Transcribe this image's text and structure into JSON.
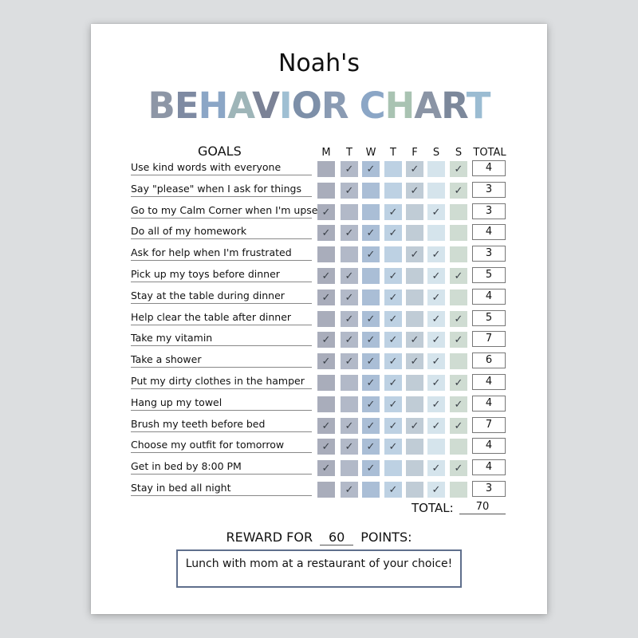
{
  "header": {
    "name": "Noah's",
    "title_letters": [
      {
        "ch": "B",
        "color": "#8d96a6"
      },
      {
        "ch": "E",
        "color": "#7e8aa2"
      },
      {
        "ch": "H",
        "color": "#8ba6c6"
      },
      {
        "ch": "A",
        "color": "#9eb5b8"
      },
      {
        "ch": "V",
        "color": "#7b8296"
      },
      {
        "ch": "I",
        "color": "#9fbfd3"
      },
      {
        "ch": "O",
        "color": "#7d8fa8"
      },
      {
        "ch": "R",
        "color": "#8a9bb3"
      },
      {
        "ch": " ",
        "color": "#ffffff"
      },
      {
        "ch": "C",
        "color": "#8ba6c6"
      },
      {
        "ch": "H",
        "color": "#a9c3b2"
      },
      {
        "ch": "A",
        "color": "#8a94a5"
      },
      {
        "ch": "R",
        "color": "#7c889b"
      },
      {
        "ch": "T",
        "color": "#9bbcd2"
      }
    ]
  },
  "table": {
    "goals_header": "GOALS",
    "total_header": "TOTAL",
    "days": [
      "M",
      "T",
      "W",
      "T",
      "F",
      "S",
      "S"
    ],
    "day_colors": [
      "#a9adbb",
      "#b2b9c8",
      "#aabed6",
      "#bdd1e3",
      "#c0ccd6",
      "#d5e4ec",
      "#cfdcd2"
    ],
    "check_mark": "✓",
    "rows": [
      {
        "goal": "Use kind words with everyone",
        "checks": [
          0,
          1,
          1,
          0,
          1,
          0,
          1
        ],
        "total": "4"
      },
      {
        "goal": "Say \"please\" when I ask for things",
        "checks": [
          0,
          1,
          0,
          0,
          1,
          0,
          1
        ],
        "total": "3"
      },
      {
        "goal": "Go to my Calm Corner when I'm upset",
        "checks": [
          1,
          0,
          0,
          1,
          0,
          1,
          0
        ],
        "total": "3"
      },
      {
        "goal": "Do all of my homework",
        "checks": [
          1,
          1,
          1,
          1,
          0,
          0,
          0
        ],
        "total": "4"
      },
      {
        "goal": "Ask for help when I'm frustrated",
        "checks": [
          0,
          0,
          1,
          0,
          1,
          1,
          0
        ],
        "total": "3"
      },
      {
        "goal": "Pick up my toys before dinner",
        "checks": [
          1,
          1,
          0,
          1,
          0,
          1,
          1
        ],
        "total": "5"
      },
      {
        "goal": "Stay at the table during dinner",
        "checks": [
          1,
          1,
          0,
          1,
          0,
          1,
          0
        ],
        "total": "4"
      },
      {
        "goal": "Help clear the table after dinner",
        "checks": [
          0,
          1,
          1,
          1,
          0,
          1,
          1
        ],
        "total": "5"
      },
      {
        "goal": "Take my vitamin",
        "checks": [
          1,
          1,
          1,
          1,
          1,
          1,
          1
        ],
        "total": "7"
      },
      {
        "goal": "Take a shower",
        "checks": [
          1,
          1,
          1,
          1,
          1,
          1,
          0
        ],
        "total": "6"
      },
      {
        "goal": "Put my dirty clothes in the hamper",
        "checks": [
          0,
          0,
          1,
          1,
          0,
          1,
          1
        ],
        "total": "4"
      },
      {
        "goal": "Hang up my towel",
        "checks": [
          0,
          0,
          1,
          1,
          0,
          1,
          1
        ],
        "total": "4"
      },
      {
        "goal": "Brush my teeth before bed",
        "checks": [
          1,
          1,
          1,
          1,
          1,
          1,
          1
        ],
        "total": "7"
      },
      {
        "goal": "Choose my outfit for tomorrow",
        "checks": [
          1,
          1,
          1,
          1,
          0,
          0,
          0
        ],
        "total": "4"
      },
      {
        "goal": "Get in bed by 8:00 PM",
        "checks": [
          1,
          0,
          1,
          0,
          0,
          1,
          1
        ],
        "total": "4"
      },
      {
        "goal": "Stay in bed all night",
        "checks": [
          0,
          1,
          0,
          1,
          0,
          1,
          0
        ],
        "total": "3"
      }
    ]
  },
  "summary": {
    "total_label": "TOTAL:",
    "total_value": "70",
    "reward_prefix": "REWARD FOR",
    "reward_points": "60",
    "reward_suffix": "POINTS:",
    "reward_text": "Lunch with mom at a restaurant of your choice!"
  }
}
